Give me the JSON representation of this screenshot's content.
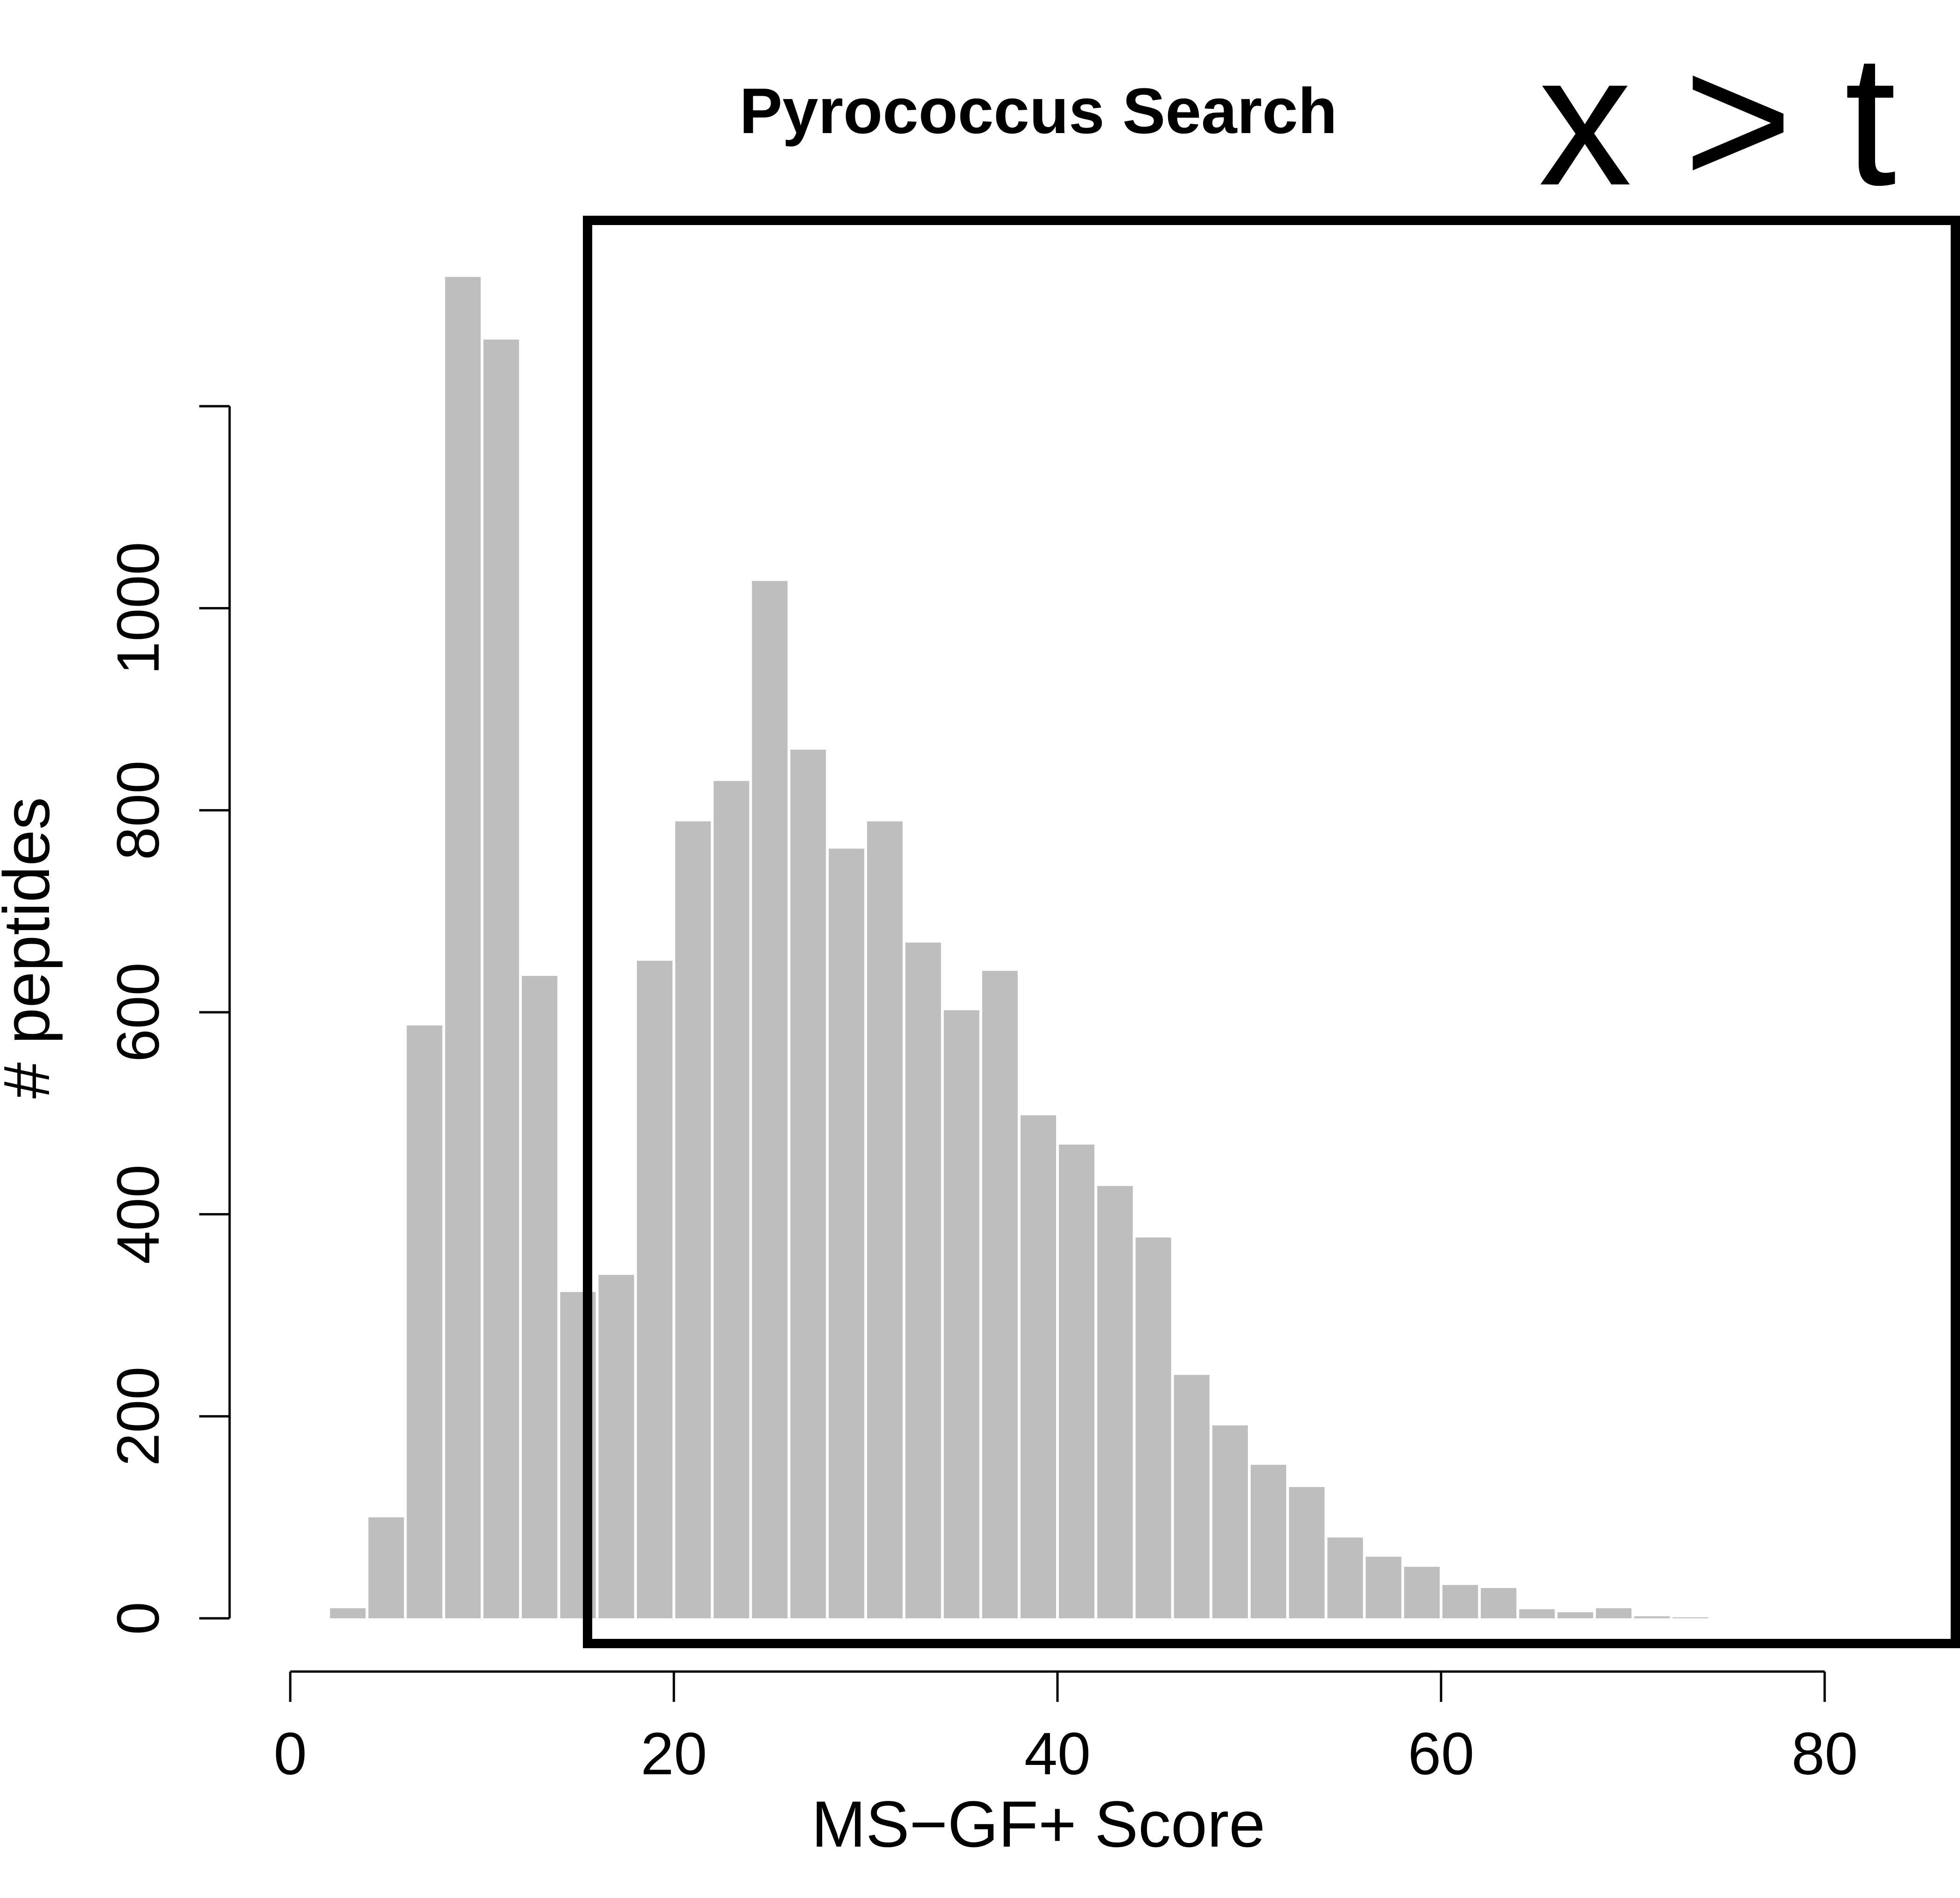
{
  "chart_data": {
    "type": "bar",
    "title": "Pyrococcus Search",
    "xlabel": "MS−GF+ Score",
    "ylabel": "# peptides",
    "xlim": [
      0,
      80
    ],
    "ylim": [
      0,
      1200
    ],
    "x_ticks": [
      "0",
      "20",
      "40",
      "60",
      "80"
    ],
    "y_ticks": [
      "0",
      "200",
      "400",
      "600",
      "800",
      "1000"
    ],
    "bin_width": 2,
    "bin_starts": [
      2,
      4,
      6,
      8,
      10,
      12,
      14,
      16,
      18,
      20,
      22,
      24,
      26,
      28,
      30,
      32,
      34,
      36,
      38,
      40,
      42,
      44,
      46,
      48,
      50,
      52,
      54,
      56,
      58,
      60,
      62,
      64,
      66,
      68,
      70,
      72
    ],
    "values": [
      10,
      100,
      587,
      1328,
      1266,
      636,
      323,
      340,
      651,
      789,
      829,
      1027,
      860,
      762,
      789,
      669,
      602,
      641,
      498,
      469,
      428,
      377,
      241,
      191,
      152,
      130,
      80,
      61,
      51,
      33,
      30,
      9,
      6,
      10,
      2,
      1
    ],
    "bar_color": "#bebebe",
    "grid": false,
    "legend": "none",
    "annotation": {
      "text": "x > t",
      "x_from": 15.5,
      "x_to": 87
    }
  }
}
